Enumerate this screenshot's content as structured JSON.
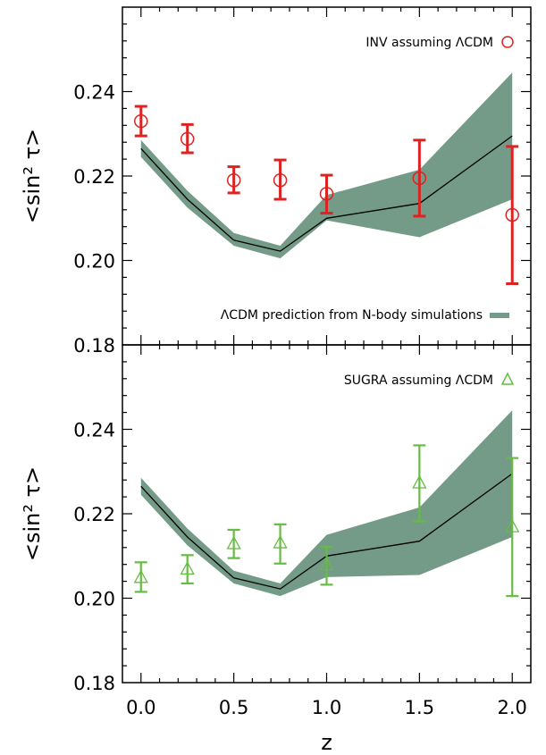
{
  "chart_data": [
    {
      "type": "line",
      "panel": "top",
      "ylabel": "<sin² τ>",
      "xlabel": "",
      "xlim": [
        -0.1,
        2.1
      ],
      "ylim": [
        0.18,
        0.26
      ],
      "x_ticks": [
        "0.0",
        "0.5",
        "1.0",
        "1.5",
        "2.0"
      ],
      "y_ticks": [
        "0.18",
        "0.20",
        "0.22",
        "0.24"
      ],
      "band": {
        "name": "ΛCDM prediction from N-body simulations",
        "color": "#749a88",
        "x": [
          0.0,
          0.25,
          0.5,
          0.75,
          1.0,
          1.5,
          2.0
        ],
        "lower": [
          0.2245,
          0.2125,
          0.2035,
          0.2005,
          0.2095,
          0.2055,
          0.2145
        ],
        "upper": [
          0.2285,
          0.2165,
          0.2065,
          0.2035,
          0.2155,
          0.2215,
          0.2445
        ]
      },
      "line": {
        "x": [
          0.0,
          0.25,
          0.5,
          0.75,
          1.0,
          1.5,
          2.0
        ],
        "y": [
          0.2265,
          0.2145,
          0.2048,
          0.2022,
          0.21,
          0.2135,
          0.2295
        ]
      },
      "series": [
        {
          "name": "INV assuming ΛCDM",
          "marker": "circle",
          "color": "#dd2222",
          "x": [
            0.0,
            0.25,
            0.5,
            0.75,
            1.0,
            1.5,
            2.0
          ],
          "y": [
            0.233,
            0.2288,
            0.219,
            0.219,
            0.2158,
            0.2195,
            0.2108
          ],
          "yerr_low": [
            0.2295,
            0.2255,
            0.216,
            0.2145,
            0.2112,
            0.2105,
            0.1945
          ],
          "yerr_high": [
            0.2365,
            0.2322,
            0.2222,
            0.2238,
            0.2202,
            0.2285,
            0.227
          ]
        }
      ]
    },
    {
      "type": "line",
      "panel": "bottom",
      "ylabel": "<sin² τ>",
      "xlabel": "z",
      "xlim": [
        -0.1,
        2.1
      ],
      "ylim": [
        0.18,
        0.26
      ],
      "x_ticks": [
        "0.0",
        "0.5",
        "1.0",
        "1.5",
        "2.0"
      ],
      "y_ticks": [
        "0.18",
        "0.20",
        "0.22",
        "0.24"
      ],
      "band": {
        "color": "#749a88",
        "x": [
          0.0,
          0.25,
          0.5,
          0.75,
          1.0,
          1.5,
          2.0
        ],
        "lower": [
          0.2245,
          0.2125,
          0.2035,
          0.2005,
          0.205,
          0.2055,
          0.2145
        ],
        "upper": [
          0.2285,
          0.2165,
          0.2065,
          0.2035,
          0.215,
          0.2215,
          0.2445
        ]
      },
      "line": {
        "x": [
          0.0,
          0.25,
          0.5,
          0.75,
          1.0,
          1.5,
          2.0
        ],
        "y": [
          0.2265,
          0.2145,
          0.2048,
          0.2022,
          0.21,
          0.2135,
          0.2295
        ]
      },
      "series": [
        {
          "name": "SUGRA assuming ΛCDM",
          "marker": "triangle",
          "color": "#66bb44",
          "x": [
            0.0,
            0.25,
            0.5,
            0.75,
            1.0,
            1.5,
            2.0
          ],
          "y": [
            0.2048,
            0.2068,
            0.2128,
            0.213,
            0.2078,
            0.2272,
            0.2168
          ],
          "yerr_low": [
            0.2015,
            0.2035,
            0.2095,
            0.2082,
            0.2032,
            0.2182,
            0.2005
          ],
          "yerr_high": [
            0.2085,
            0.2102,
            0.2162,
            0.2175,
            0.2122,
            0.2362,
            0.2332
          ]
        }
      ]
    }
  ]
}
